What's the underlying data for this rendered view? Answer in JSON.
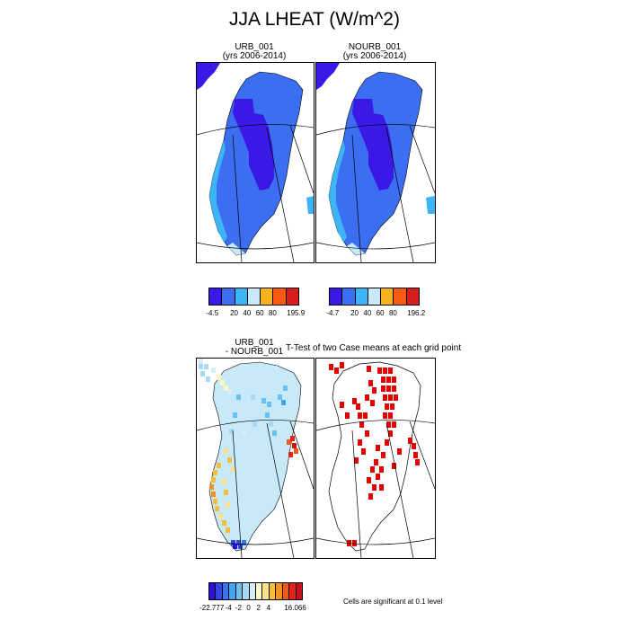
{
  "title": "JJA LHEAT (W/m^2)",
  "panels": {
    "urb": {
      "title": "URB_001",
      "subtitle": "(yrs 2006-2014)"
    },
    "nourb": {
      "title": "NOURB_001",
      "subtitle": "(yrs 2006-2014)"
    },
    "diff": {
      "title": "URB_001",
      "subtitle": "- NOURB_001"
    },
    "ttest": {
      "title": "T-Test of two Case means at each grid point"
    }
  },
  "colorbars": {
    "urb": {
      "labels": [
        "-4.5",
        "20",
        "40",
        "60",
        "80",
        "195.9"
      ],
      "colors": [
        "#3a18e6",
        "#3b6ef0",
        "#3cb4f5",
        "#c8e9f8",
        "#f7b21d",
        "#f85a12",
        "#d81d1d"
      ]
    },
    "nourb": {
      "labels": [
        "-4.7",
        "20",
        "40",
        "60",
        "80",
        "196.2"
      ],
      "colors": [
        "#3a18e6",
        "#3b6ef0",
        "#3cb4f5",
        "#c8e9f8",
        "#f7b21d",
        "#f85a12",
        "#d81d1d"
      ]
    },
    "diff": {
      "labels": [
        "-22.777",
        "-4",
        "-2",
        "0",
        "2",
        "4",
        "16.066"
      ],
      "colors": [
        "#2a10d8",
        "#3445e6",
        "#3a74ee",
        "#42a4f2",
        "#6cc0f2",
        "#a6daf6",
        "#d4eefa",
        "#fdf8c0",
        "#fde28a",
        "#f9bd3c",
        "#f98f1c",
        "#f5581a",
        "#e52418",
        "#c8121e"
      ]
    }
  },
  "note": "Cells are significant at 0.1 level",
  "colors": {
    "land_main": "#3b6ef0",
    "interior": "#3a18e6",
    "coast": "#3cb4f5",
    "diff_base": "#c8e9f8",
    "sig_red": "#e50000"
  }
}
